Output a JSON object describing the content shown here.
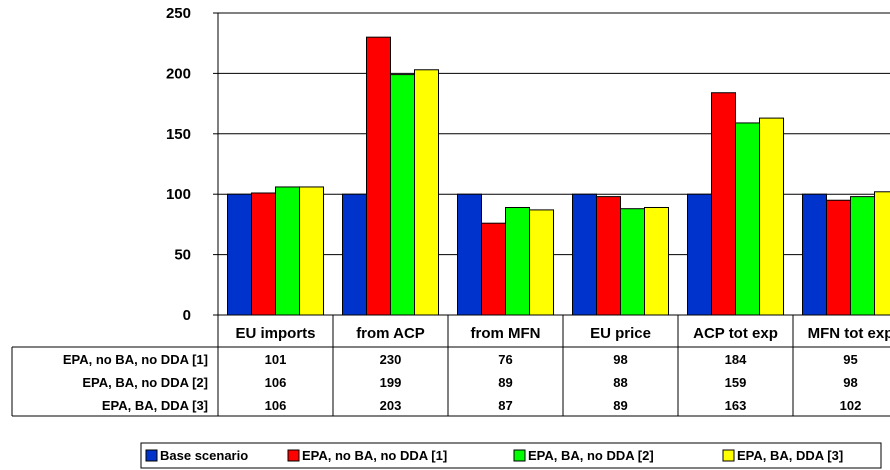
{
  "chart_data": {
    "type": "bar",
    "categories": [
      "EU imports",
      "from ACP",
      "from MFN",
      "EU price",
      "ACP tot exp",
      "MFN tot exp"
    ],
    "series": [
      {
        "name": "Base scenario",
        "color": "#0033CC",
        "values": [
          100,
          100,
          100,
          100,
          100,
          100
        ]
      },
      {
        "name": "EPA, no BA, no DDA [1]",
        "color": "#FF0000",
        "values": [
          101,
          230,
          76,
          98,
          184,
          95
        ]
      },
      {
        "name": "EPA, BA, no DDA [2]",
        "color": "#00FF00",
        "values": [
          106,
          199,
          89,
          88,
          159,
          98
        ]
      },
      {
        "name": "EPA, BA, DDA [3]",
        "color": "#FFFF00",
        "values": [
          106,
          203,
          87,
          89,
          163,
          102
        ]
      }
    ],
    "yticks": [
      0,
      50,
      100,
      150,
      200,
      250
    ],
    "ylim": [
      0,
      250
    ],
    "grid": true,
    "legend": "bottom",
    "data_table": {
      "row_labels": [
        "EPA, no BA, no DDA [1]",
        "EPA, BA, no DDA [2]",
        "EPA, BA, DDA [3]"
      ],
      "rows": [
        [
          "101",
          "230",
          "76",
          "98",
          "184",
          "95"
        ],
        [
          "106",
          "199",
          "89",
          "88",
          "159",
          "98"
        ],
        [
          "106",
          "203",
          "87",
          "89",
          "163",
          "102"
        ]
      ]
    }
  }
}
